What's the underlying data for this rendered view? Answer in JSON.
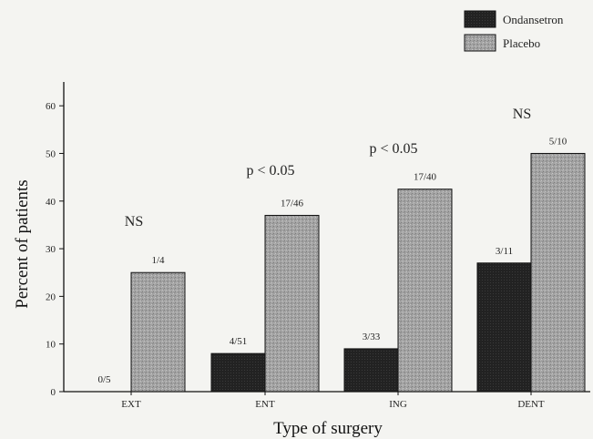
{
  "chart_data": {
    "type": "bar",
    "categories": [
      "EXT",
      "ENT",
      "ING",
      "DENT"
    ],
    "series": [
      {
        "name": "Ondansetron",
        "values": [
          0,
          8,
          9,
          27
        ],
        "labels": [
          "0/5",
          "4/51",
          "3/33",
          "3/11"
        ],
        "color": "#1e1e1e"
      },
      {
        "name": "Placebo",
        "values": [
          25,
          37,
          42.5,
          50
        ],
        "labels": [
          "1/4",
          "17/46",
          "17/40",
          "5/10"
        ],
        "color": "#9a9a9a"
      }
    ],
    "annotations": [
      "NS",
      "p < 0.05",
      "p < 0.05",
      "NS"
    ],
    "xlabel": "Type of surgery",
    "ylabel": "Percent of patients",
    "yticks": [
      0,
      10,
      20,
      30,
      40,
      50,
      60
    ],
    "ylim": [
      0,
      65
    ],
    "legend_position": "top-right",
    "grid": false
  }
}
